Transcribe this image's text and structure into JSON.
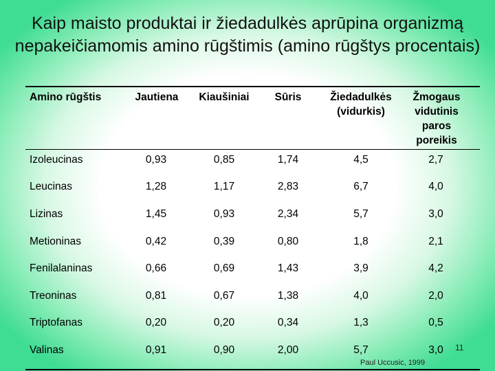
{
  "title": "Kaip maisto produktai ir žiedadulkės aprūpina organizmą nepakeičiamomis amino rūgštimis (amino rūgštys procentais)",
  "table": {
    "headers": [
      "Amino rūgštis",
      "Jautiena",
      "Kiaušiniai",
      "Sūris",
      "Žiedadulkės (vidurkis)",
      "Žmogaus vidutinis paros poreikis"
    ],
    "rows": [
      [
        "Izoleucinas",
        "0,93",
        "0,85",
        "1,74",
        "4,5",
        "2,7"
      ],
      [
        "Leucinas",
        "1,28",
        "1,17",
        "2,83",
        "6,7",
        "4,0"
      ],
      [
        "Lizinas",
        "1,45",
        "0,93",
        "2,34",
        "5,7",
        "3,0"
      ],
      [
        "Metioninas",
        "0,42",
        "0,39",
        "0,80",
        "1,8",
        "2,1"
      ],
      [
        "Fenilalaninas",
        "0,66",
        "0,69",
        "1,43",
        "3,9",
        "4,2"
      ],
      [
        "Treoninas",
        "0,81",
        "0,67",
        "1,38",
        "4,0",
        "2,0"
      ],
      [
        "Triptofanas",
        "0,20",
        "0,20",
        "0,34",
        "1,3",
        "0,5"
      ],
      [
        "Valinas",
        "0,91",
        "0,90",
        "2,00",
        "5,7",
        "3,0"
      ]
    ]
  },
  "source": "Paul Uccusic, 1999",
  "page_number": "11",
  "colors": {
    "background_edge": "#3fdc94",
    "background_center": "#ffffff",
    "rule": "#000000"
  }
}
